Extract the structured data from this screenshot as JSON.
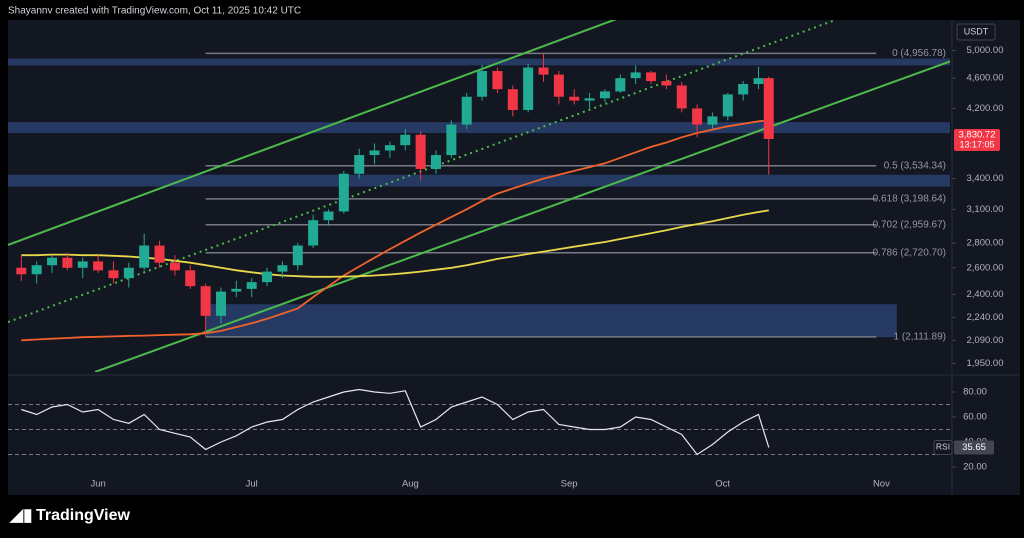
{
  "header": "Shayannv created with TradingView.com, Oct 11, 2025 10:42 UTC",
  "currency": "USDT",
  "brand": "TradingView",
  "chart_data": [
    {
      "type": "candlestick",
      "log_scale": true,
      "xlim": [
        -17.6,
        166.4
      ],
      "ylim": [
        1900,
        5480
      ],
      "yticks": [
        {
          "value": 5000,
          "label": "5,000.00"
        },
        {
          "value": 4600,
          "label": "4,600.00"
        },
        {
          "value": 4200,
          "label": "4,200.00"
        },
        {
          "value": 3400,
          "label": "3,400.00"
        },
        {
          "value": 3100,
          "label": "3,100.00"
        },
        {
          "value": 2800,
          "label": "2,800.00"
        },
        {
          "value": 2600,
          "label": "2,600.00"
        },
        {
          "value": 2400,
          "label": "2,400.00"
        },
        {
          "value": 2240,
          "label": "2,240.00"
        },
        {
          "value": 2090,
          "label": "2,090.00"
        },
        {
          "value": 1950,
          "label": "1,950.00"
        }
      ],
      "up_color": "#22ab94",
      "down_color": "#f23645",
      "x": [
        -15,
        -12,
        -9,
        -6,
        -3,
        0,
        3,
        6,
        9,
        12,
        15,
        18,
        21,
        24,
        27,
        30,
        33,
        36,
        39,
        42,
        45,
        48,
        51,
        54,
        57,
        60,
        63,
        66,
        69,
        72,
        75,
        78,
        81,
        84,
        87,
        90,
        93,
        96,
        99,
        102,
        105,
        108,
        111,
        114,
        117,
        120,
        123,
        126,
        129,
        131
      ],
      "open": [
        2600,
        2550,
        2620,
        2680,
        2600,
        2650,
        2580,
        2520,
        2600,
        2780,
        2640,
        2580,
        2460,
        2250,
        2420,
        2440,
        2490,
        2570,
        2620,
        2780,
        3000,
        3080,
        3450,
        3650,
        3700,
        3760,
        3880,
        3500,
        3650,
        4000,
        4350,
        4700,
        4450,
        4180,
        4750,
        4650,
        4350,
        4300,
        4330,
        4420,
        4600,
        4680,
        4560,
        4500,
        4200,
        4000,
        4100,
        4380,
        4520,
        4600
      ],
      "high": [
        2700,
        2650,
        2700,
        2720,
        2680,
        2700,
        2650,
        2640,
        2880,
        2820,
        2700,
        2620,
        2480,
        2450,
        2500,
        2520,
        2600,
        2650,
        2800,
        3050,
        3100,
        3480,
        3720,
        3780,
        3800,
        3950,
        3920,
        3700,
        4050,
        4400,
        4790,
        4750,
        4500,
        4800,
        4960,
        4700,
        4450,
        4400,
        4450,
        4650,
        4780,
        4700,
        4650,
        4550,
        4250,
        4150,
        4400,
        4560,
        4760,
        4620
      ],
      "low": [
        2500,
        2480,
        2560,
        2580,
        2520,
        2560,
        2480,
        2450,
        2580,
        2600,
        2540,
        2440,
        2120,
        2200,
        2380,
        2380,
        2460,
        2520,
        2580,
        2760,
        2950,
        3060,
        3400,
        3550,
        3620,
        3700,
        3380,
        3450,
        3620,
        3950,
        4300,
        4400,
        4100,
        4150,
        4550,
        4250,
        4250,
        4200,
        4280,
        4400,
        4520,
        4520,
        4450,
        4150,
        3850,
        3950,
        4050,
        4300,
        4450,
        3440
      ],
      "close": [
        2550,
        2620,
        2680,
        2600,
        2650,
        2580,
        2520,
        2600,
        2780,
        2640,
        2580,
        2460,
        2250,
        2420,
        2440,
        2490,
        2570,
        2620,
        2780,
        3000,
        3080,
        3450,
        3650,
        3700,
        3760,
        3880,
        3500,
        3650,
        4000,
        4350,
        4700,
        4450,
        4180,
        4750,
        4650,
        4350,
        4300,
        4330,
        4420,
        4600,
        4680,
        4560,
        4500,
        4200,
        4000,
        4100,
        4380,
        4520,
        4600,
        3830.72
      ],
      "last_price_label": "3,830.72",
      "countdown": "13:17:05",
      "overlays": [
        {
          "color": "#f0622b",
          "values": [
            2090,
            2095,
            2100,
            2105,
            2110,
            2112,
            2115,
            2118,
            2120,
            2123,
            2126,
            2128,
            2135,
            2150,
            2175,
            2200,
            2230,
            2265,
            2300,
            2380,
            2460,
            2540,
            2610,
            2680,
            2750,
            2820,
            2890,
            2960,
            3030,
            3100,
            3180,
            3250,
            3300,
            3350,
            3400,
            3440,
            3480,
            3520,
            3560,
            3620,
            3680,
            3740,
            3790,
            3850,
            3900,
            3940,
            3980,
            4010,
            4040,
            4050
          ]
        },
        {
          "color": "#e8d84a",
          "values": [
            2700,
            2700,
            2705,
            2705,
            2700,
            2700,
            2695,
            2690,
            2680,
            2670,
            2655,
            2640,
            2620,
            2600,
            2580,
            2565,
            2550,
            2540,
            2535,
            2530,
            2530,
            2532,
            2535,
            2540,
            2548,
            2558,
            2570,
            2585,
            2600,
            2620,
            2645,
            2670,
            2690,
            2710,
            2730,
            2750,
            2770,
            2790,
            2810,
            2835,
            2860,
            2885,
            2910,
            2940,
            2965,
            2990,
            3020,
            3050,
            3075,
            3090
          ]
        }
      ],
      "zones": [
        {
          "from": 4780,
          "to": 4880
        },
        {
          "from": 3900,
          "to": 4030
        },
        {
          "from": 3320,
          "to": 3440
        },
        {
          "from": 2110,
          "to": 2330,
          "x": [
            21,
            156
          ]
        }
      ],
      "zone_color": "#2a3f6e",
      "trendlines": [
        {
          "color": "#4cbb4c",
          "dashed": false,
          "points": [
            [
              -17.6,
              2785
            ],
            [
              102,
              5520
            ]
          ]
        },
        {
          "color": "#4cbb4c",
          "dashed": false,
          "points": [
            [
              -0.6,
              1900
            ],
            [
              167.4,
              4865
            ]
          ]
        },
        {
          "color": "#4cbb4c",
          "dashed": true,
          "points": [
            [
              -17.6,
              2208
            ],
            [
              144,
              5480
            ]
          ]
        }
      ],
      "fib_x": [
        21,
        152
      ],
      "fib_levels": [
        {
          "value": 4956.78,
          "label": "0 (4,956.78)"
        },
        {
          "value": 3534.34,
          "label": "0.5 (3,534.34)"
        },
        {
          "value": 3198.64,
          "label": "0.618 (3,198.64)"
        },
        {
          "value": 2959.67,
          "label": "0.702 (2,959.67)"
        },
        {
          "value": 2720.7,
          "label": "0.786 (2,720.70)"
        },
        {
          "value": 2111.89,
          "label": "1 (2,111.89)"
        }
      ]
    },
    {
      "type": "line",
      "name": "RSI",
      "color": "#e6e8ee",
      "xlim": [
        -17.6,
        166.4
      ],
      "ylim": [
        9.6,
        89.6
      ],
      "yticks": [
        {
          "value": 80,
          "label": "80.00"
        },
        {
          "value": 60,
          "label": "60.00"
        },
        {
          "value": 40,
          "label": "40.00"
        },
        {
          "value": 20,
          "label": "20.00"
        }
      ],
      "levels": [
        70,
        50,
        30
      ],
      "xticks": [
        {
          "value": 0,
          "label": "Jun"
        },
        {
          "value": 30,
          "label": "Jul"
        },
        {
          "value": 61,
          "label": "Aug"
        },
        {
          "value": 92,
          "label": "Sep"
        },
        {
          "value": 122,
          "label": "Oct"
        },
        {
          "value": 153,
          "label": "Nov"
        }
      ],
      "x": [
        -15,
        -12,
        -9,
        -6,
        -3,
        0,
        3,
        6,
        9,
        12,
        15,
        18,
        21,
        24,
        27,
        30,
        33,
        36,
        39,
        42,
        45,
        48,
        51,
        54,
        57,
        60,
        63,
        66,
        69,
        72,
        75,
        78,
        81,
        84,
        87,
        90,
        93,
        96,
        99,
        102,
        105,
        108,
        111,
        114,
        117,
        120,
        123,
        126,
        129,
        131
      ],
      "values": [
        66,
        62,
        68,
        70,
        64,
        66,
        58,
        55,
        62,
        50,
        47,
        44,
        34,
        40,
        45,
        52,
        56,
        58,
        66,
        72,
        76,
        80,
        82,
        80,
        79,
        81,
        52,
        58,
        68,
        72,
        76,
        70,
        58,
        64,
        66,
        54,
        52,
        50,
        50,
        52,
        60,
        58,
        52,
        46,
        30,
        38,
        48,
        56,
        62,
        35.65
      ]
    }
  ]
}
